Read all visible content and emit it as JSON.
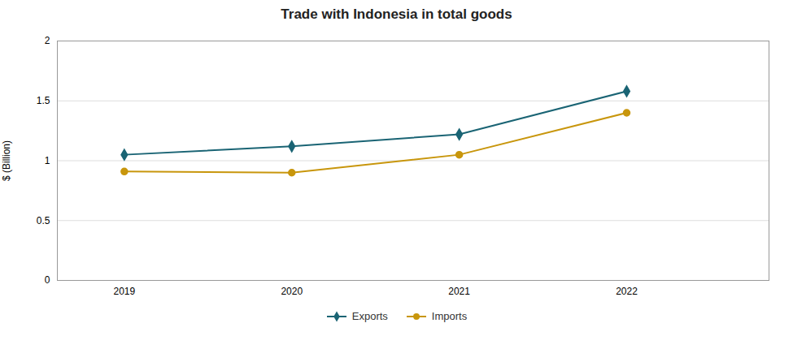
{
  "chart_data": {
    "type": "line",
    "title": "Trade with Indonesia in total goods",
    "x": [
      2019,
      2020,
      2021,
      2022
    ],
    "series": [
      {
        "name": "Exports",
        "color": "#1a6474",
        "marker": "diamond",
        "values": [
          1.05,
          1.12,
          1.22,
          1.58
        ]
      },
      {
        "name": "Imports",
        "color": "#c8960c",
        "marker": "circle",
        "values": [
          0.91,
          0.9,
          1.05,
          1.4
        ]
      }
    ],
    "ylabel": "$ (Billion)",
    "ylim": [
      0,
      2.0
    ],
    "yticks": [
      0,
      0.5,
      1,
      1.5,
      2
    ],
    "xlim": [
      2018.6,
      2022.85
    ],
    "xticks": [
      2019,
      2020,
      2021,
      2022
    ],
    "grid": true,
    "legend": "bottom"
  }
}
